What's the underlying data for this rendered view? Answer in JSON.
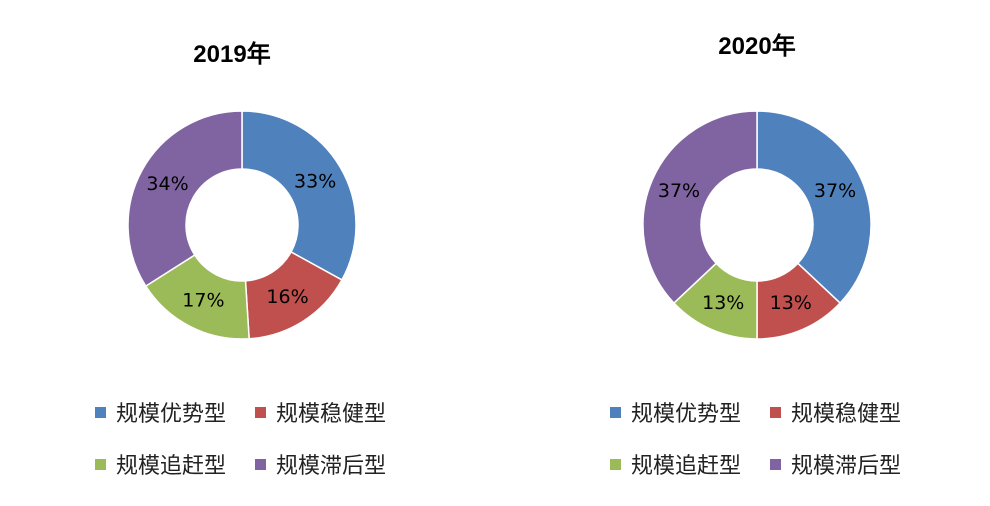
{
  "chart_data": [
    {
      "type": "pie",
      "donut": true,
      "title": "2019年",
      "categories": [
        "规模优势型",
        "规模稳健型",
        "规模追赶型",
        "规模滞后型"
      ],
      "values": [
        33,
        16,
        17,
        34
      ],
      "labels": [
        "33%",
        "16%",
        "17%",
        "34%"
      ],
      "colors": [
        "#4F81BD",
        "#C0504D",
        "#9BBB59",
        "#8064A2"
      ],
      "legend_position": "bottom"
    },
    {
      "type": "pie",
      "donut": true,
      "title": "2020年",
      "categories": [
        "规模优势型",
        "规模稳健型",
        "规模追赶型",
        "规模滞后型"
      ],
      "values": [
        37,
        13,
        13,
        37
      ],
      "labels": [
        "37%",
        "13%",
        "13%",
        "37%"
      ],
      "colors": [
        "#4F81BD",
        "#C0504D",
        "#9BBB59",
        "#8064A2"
      ],
      "legend_position": "bottom"
    }
  ]
}
